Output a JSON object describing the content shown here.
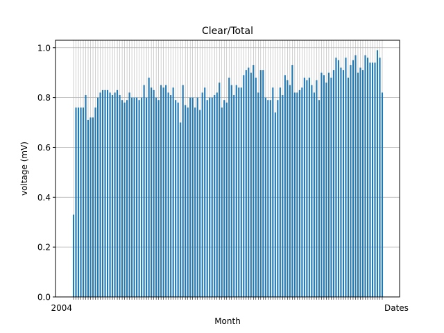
{
  "chart_data": {
    "type": "bar",
    "title": "Clear/Total",
    "xlabel": "Month",
    "ylabel": "voltage (mV)",
    "ylim": [
      0,
      1.03
    ],
    "yticks": [
      0.0,
      0.2,
      0.4,
      0.6,
      0.8,
      1.0
    ],
    "ytick_labels": [
      "0.0",
      "0.2",
      "0.4",
      "0.6",
      "0.8",
      "1.0"
    ],
    "grid": true,
    "bar_color": "#1f77b4",
    "x_first_label": "2004",
    "x_last_label": "Dates",
    "values": [
      0.33,
      0.76,
      0.76,
      0.76,
      0.76,
      0.81,
      0.71,
      0.72,
      0.72,
      0.76,
      0.8,
      0.82,
      0.83,
      0.83,
      0.83,
      0.82,
      0.81,
      0.82,
      0.83,
      0.81,
      0.79,
      0.78,
      0.79,
      0.82,
      0.8,
      0.8,
      0.8,
      0.79,
      0.8,
      0.85,
      0.8,
      0.88,
      0.84,
      0.83,
      0.8,
      0.79,
      0.85,
      0.84,
      0.85,
      0.82,
      0.81,
      0.84,
      0.79,
      0.78,
      0.7,
      0.85,
      0.77,
      0.76,
      0.8,
      0.8,
      0.76,
      0.8,
      0.75,
      0.82,
      0.84,
      0.79,
      0.8,
      0.8,
      0.81,
      0.82,
      0.86,
      0.76,
      0.79,
      0.78,
      0.88,
      0.85,
      0.81,
      0.85,
      0.84,
      0.84,
      0.89,
      0.91,
      0.92,
      0.9,
      0.93,
      0.88,
      0.82,
      0.91,
      0.91,
      0.8,
      0.79,
      0.79,
      0.84,
      0.74,
      0.79,
      0.84,
      0.81,
      0.89,
      0.87,
      0.85,
      0.93,
      0.82,
      0.82,
      0.83,
      0.84,
      0.88,
      0.87,
      0.88,
      0.85,
      0.82,
      0.87,
      0.79,
      0.9,
      0.89,
      0.86,
      0.9,
      0.88,
      0.91,
      0.96,
      0.95,
      0.92,
      0.91,
      0.96,
      0.88,
      0.93,
      0.95,
      0.97,
      0.9,
      0.92,
      0.91,
      0.97,
      0.96,
      0.94,
      0.94,
      0.94,
      0.99,
      0.96,
      0.82
    ]
  }
}
